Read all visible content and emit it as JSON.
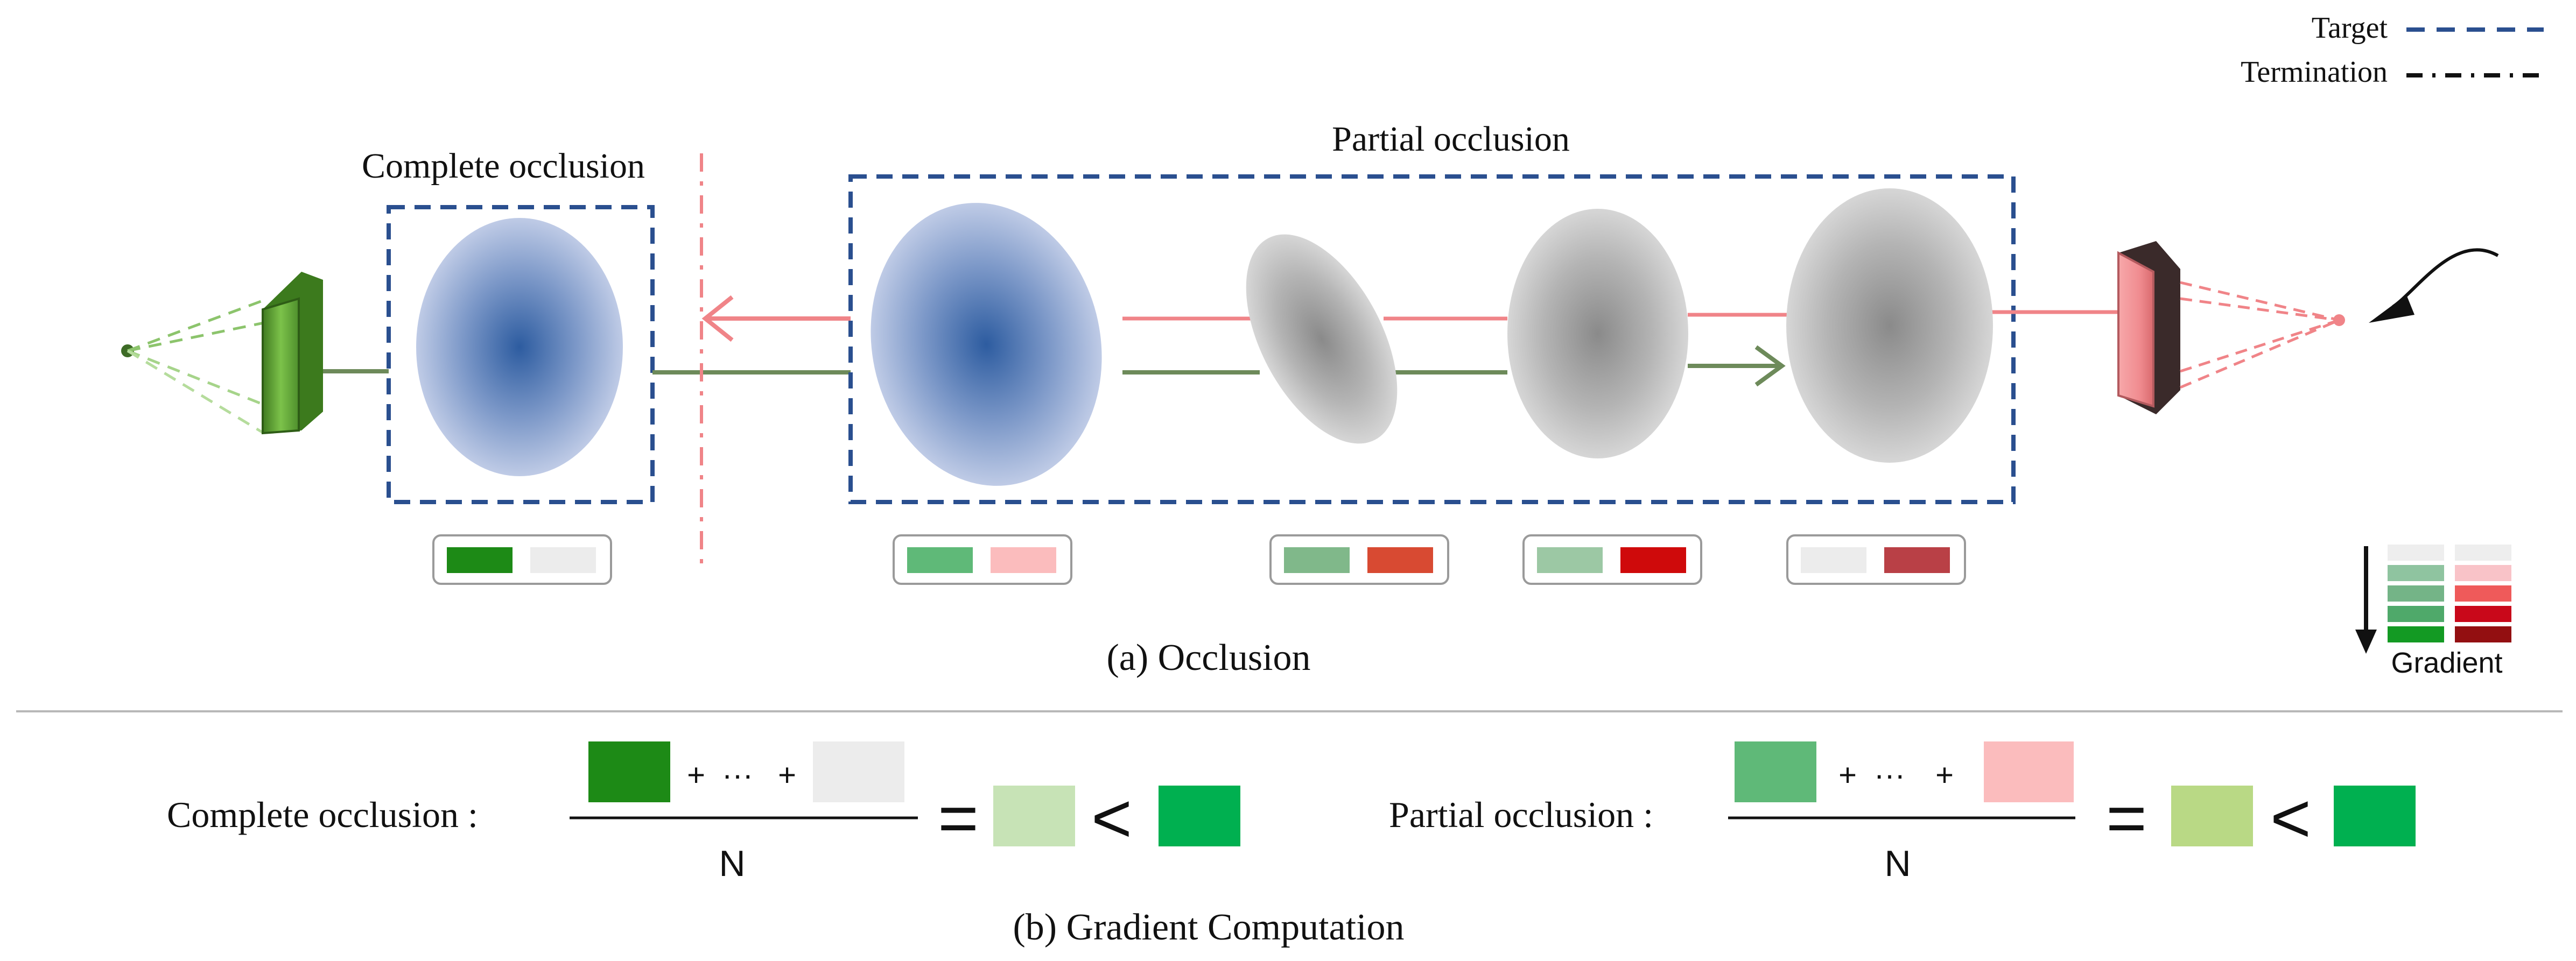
{
  "legend": {
    "target_label": "Target",
    "termination_label": "Termination"
  },
  "panel_a": {
    "complete_label": "Complete occlusion",
    "partial_label": "Partial occlusion",
    "caption": "(a) Occlusion"
  },
  "gradient_scale": {
    "label": "Gradient",
    "green_shades": [
      "#eeeeee",
      "#8fc4a0",
      "#74b487",
      "#4fa96a",
      "#139a23"
    ],
    "red_shades": [
      "#eeeeee",
      "#f9c3c8",
      "#ef5a5a",
      "#c9081a",
      "#930f11"
    ]
  },
  "indicator_boxes": [
    {
      "green": "#1d8a16",
      "red": "#ececec"
    },
    {
      "green": "#5fb978",
      "red": "#fbbcbd"
    },
    {
      "green": "#80b88a",
      "red": "#d84a32"
    },
    {
      "green": "#9cc8a4",
      "red": "#cf0a0b"
    },
    {
      "green": "#ececec",
      "red": "#b94046"
    }
  ],
  "panel_b": {
    "complete_label": "Complete occlusion :",
    "partial_label": "Partial occlusion :",
    "plus": "+",
    "ellipsis": "···",
    "denominator": "N",
    "equals": "=",
    "less_than": "<",
    "caption": "(b) Gradient Computation",
    "complete_colors": {
      "first": "#1d8a16",
      "last": "#ececec",
      "result": "#c7e3b6",
      "reference": "#00b050"
    },
    "partial_colors": {
      "first": "#5fb978",
      "last": "#fbbcbd",
      "result": "#b9d985",
      "reference": "#00b050"
    }
  }
}
